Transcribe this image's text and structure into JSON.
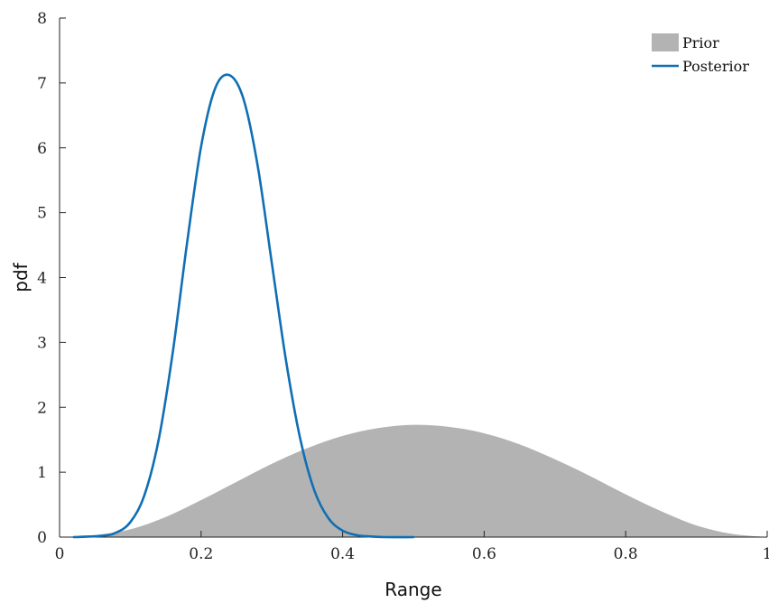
{
  "chart_data": {
    "type": "area",
    "xlabel": "Range",
    "ylabel": "pdf",
    "xlim": [
      0,
      1
    ],
    "ylim": [
      0,
      8
    ],
    "x_ticks": [
      0,
      0.2,
      0.4,
      0.6,
      0.8,
      1
    ],
    "x_tick_labels": [
      "0",
      "0.2",
      "0.4",
      "0.6",
      "0.8",
      "1"
    ],
    "y_ticks": [
      0,
      1,
      2,
      3,
      4,
      5,
      6,
      7,
      8
    ],
    "y_tick_labels": [
      "0",
      "1",
      "2",
      "3",
      "4",
      "5",
      "6",
      "7",
      "8"
    ],
    "grid": false,
    "legend_position": "top-right",
    "series": [
      {
        "name": "Prior",
        "style": "filled-area",
        "color": "#b3b3b3",
        "x": [
          0.0,
          0.05,
          0.1,
          0.15,
          0.2,
          0.25,
          0.3,
          0.35,
          0.4,
          0.45,
          0.5,
          0.55,
          0.6,
          0.65,
          0.7,
          0.75,
          0.8,
          0.85,
          0.9,
          0.95,
          1.0
        ],
        "y": [
          0.0,
          0.03,
          0.12,
          0.31,
          0.57,
          0.85,
          1.13,
          1.37,
          1.56,
          1.68,
          1.73,
          1.7,
          1.6,
          1.43,
          1.2,
          0.94,
          0.66,
          0.4,
          0.18,
          0.05,
          0.0
        ]
      },
      {
        "name": "Posterior",
        "style": "line",
        "color": "#0f6fb5",
        "x": [
          0.02,
          0.06,
          0.08,
          0.1,
          0.12,
          0.14,
          0.16,
          0.18,
          0.2,
          0.22,
          0.24,
          0.26,
          0.28,
          0.3,
          0.32,
          0.34,
          0.36,
          0.38,
          0.4,
          0.42,
          0.44,
          0.46,
          0.5
        ],
        "y": [
          0.0,
          0.02,
          0.07,
          0.23,
          0.65,
          1.5,
          2.85,
          4.52,
          6.02,
          6.92,
          7.12,
          6.75,
          5.72,
          4.22,
          2.72,
          1.52,
          0.72,
          0.29,
          0.1,
          0.03,
          0.01,
          0.0,
          0.0
        ]
      }
    ]
  }
}
